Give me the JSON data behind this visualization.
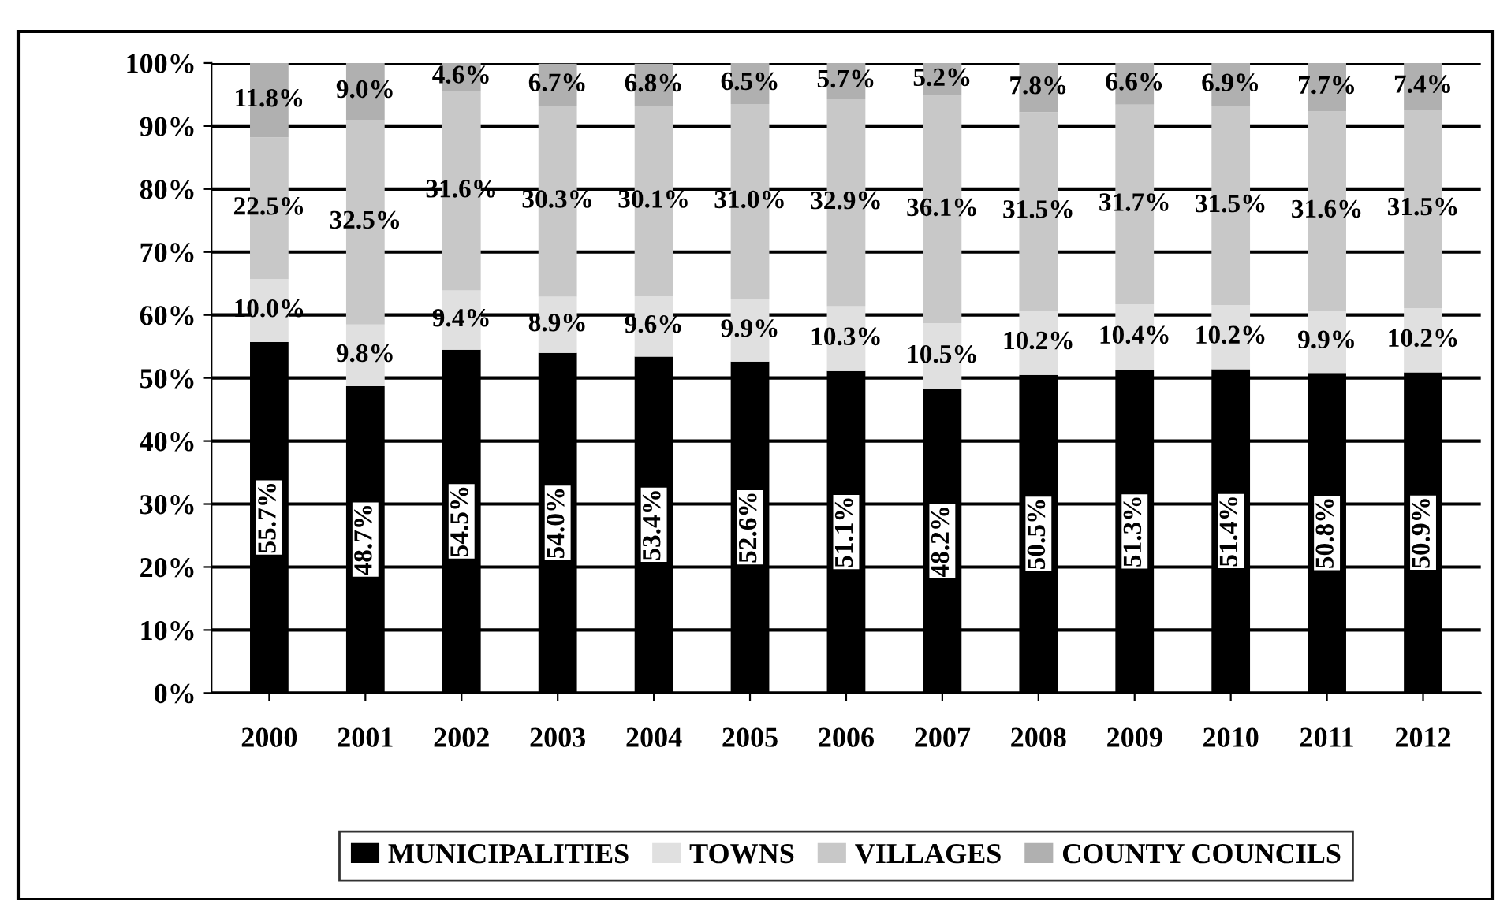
{
  "chart_data": {
    "type": "bar",
    "stacked": true,
    "categories": [
      "2000",
      "2001",
      "2002",
      "2003",
      "2004",
      "2005",
      "2006",
      "2007",
      "2008",
      "2009",
      "2010",
      "2011",
      "2012"
    ],
    "series": [
      {
        "name": "MUNICIPALITIES",
        "color": "#000000",
        "values": [
          55.7,
          48.7,
          54.5,
          54.0,
          53.4,
          52.6,
          51.1,
          48.2,
          50.5,
          51.3,
          51.4,
          50.8,
          50.9
        ],
        "value_labels": [
          "55.7%",
          "48.7%",
          "54.5%",
          "54.0%",
          "53.4%",
          "52.6%",
          "51.1%",
          "48.2%",
          "50.5%",
          "51.3%",
          "51.4%",
          "50.8%",
          "50.9%"
        ]
      },
      {
        "name": "TOWNS",
        "color": "#e0e0e0",
        "values": [
          10.0,
          9.8,
          9.4,
          8.9,
          9.6,
          9.9,
          10.3,
          10.5,
          10.2,
          10.4,
          10.2,
          9.9,
          10.2
        ],
        "value_labels": [
          "10.0%",
          "9.8%",
          "9.4%",
          "8.9%",
          "9.6%",
          "9.9%",
          "10.3%",
          "10.5%",
          "10.2%",
          "10.4%",
          "10.2%",
          "9.9%",
          "10.2%"
        ]
      },
      {
        "name": "VILLAGES",
        "color": "#c8c8c8",
        "values": [
          22.5,
          32.5,
          31.6,
          30.3,
          30.1,
          31.0,
          32.9,
          36.1,
          31.5,
          31.7,
          31.5,
          31.6,
          31.5
        ],
        "value_labels": [
          "22.5%",
          "32.5%",
          "31.6%",
          "30.3%",
          "30.1%",
          "31.0%",
          "32.9%",
          "36.1%",
          "31.5%",
          "31.7%",
          "31.5%",
          "31.6%",
          "31.5%"
        ]
      },
      {
        "name": "COUNTY COUNCILS",
        "color": "#b0b0b0",
        "values": [
          11.8,
          9.0,
          4.6,
          6.7,
          6.8,
          6.5,
          5.7,
          5.2,
          7.8,
          6.6,
          6.9,
          7.7,
          7.4
        ],
        "value_labels": [
          "11.8%",
          "9.0%",
          "4.6%",
          "6.7%",
          "6.8%",
          "6.5%",
          "5.7%",
          "5.2%",
          "7.8%",
          "6.6%",
          "6.9%",
          "7.7%",
          "7.4%"
        ]
      }
    ],
    "ylim": [
      0,
      100
    ],
    "yticks": [
      {
        "value": 0,
        "label": "0%"
      },
      {
        "value": 10,
        "label": "10%"
      },
      {
        "value": 20,
        "label": "20%"
      },
      {
        "value": 30,
        "label": "30%"
      },
      {
        "value": 40,
        "label": "40%"
      },
      {
        "value": 50,
        "label": "50%"
      },
      {
        "value": 60,
        "label": "60%"
      },
      {
        "value": 70,
        "label": "70%"
      },
      {
        "value": 80,
        "label": "80%"
      },
      {
        "value": 90,
        "label": "90%"
      },
      {
        "value": 100,
        "label": "100%"
      }
    ],
    "grid": "y",
    "legend": "bottom"
  }
}
